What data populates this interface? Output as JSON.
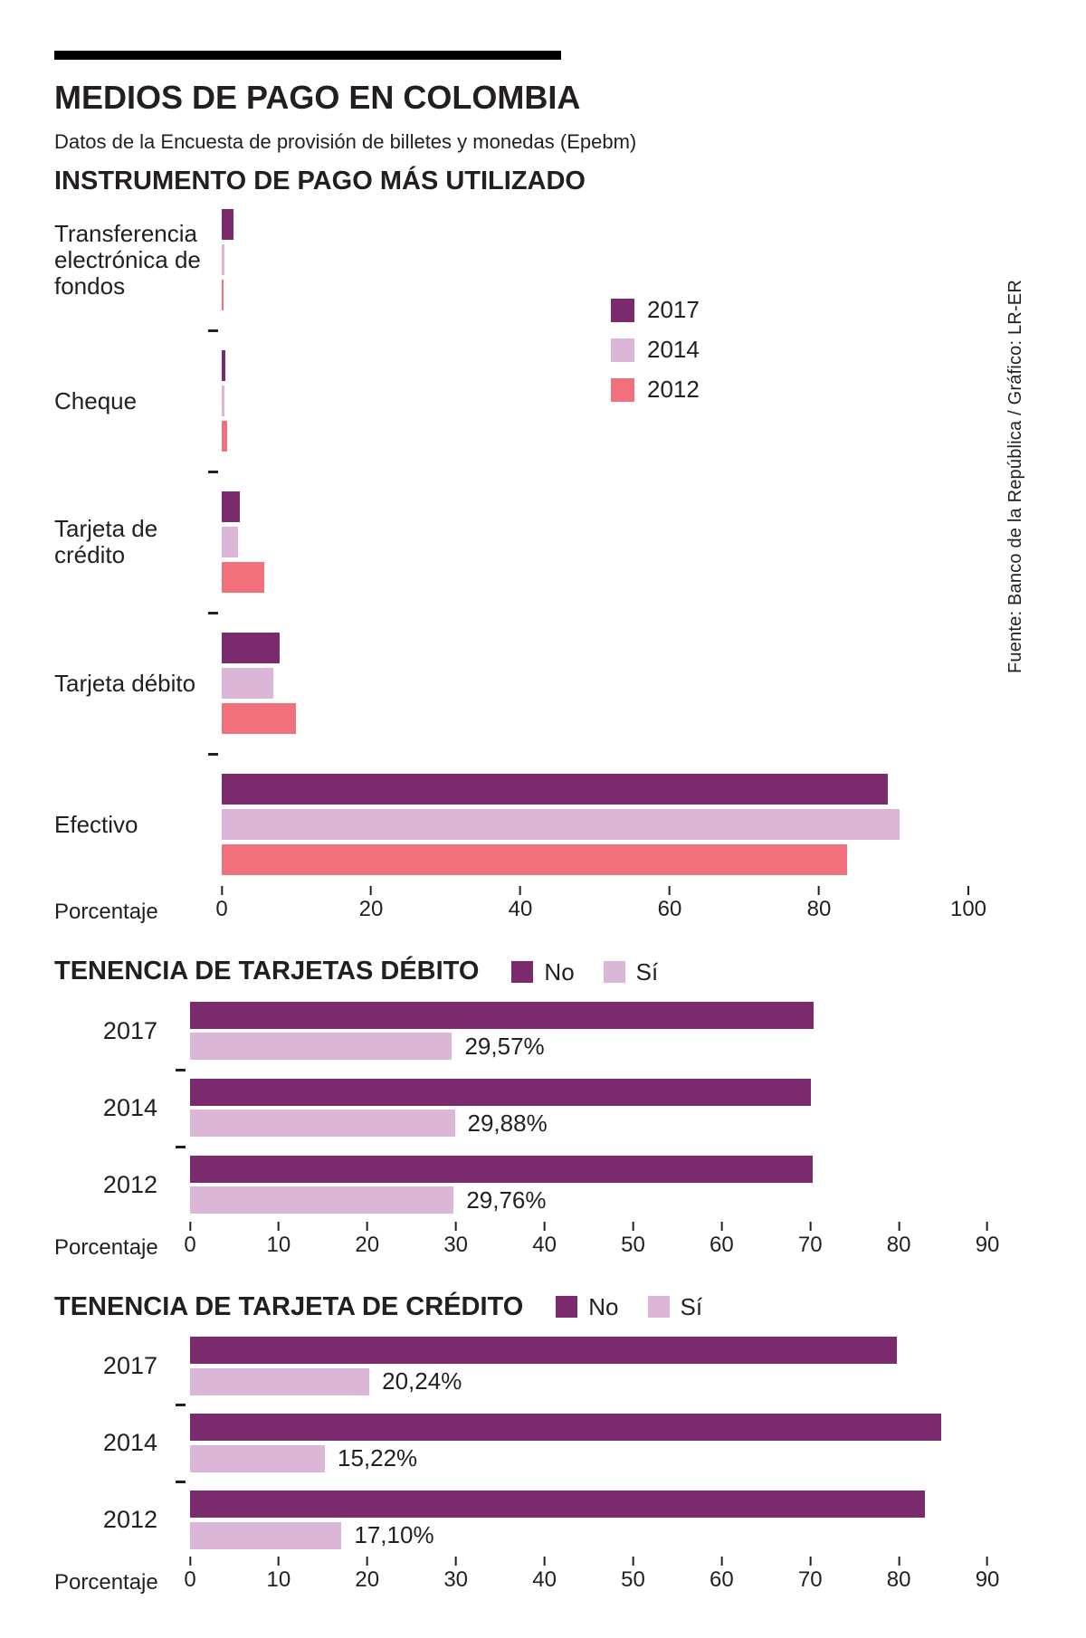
{
  "header": {
    "title": "MEDIOS DE PAGO EN COLOMBIA",
    "subtitle": "Datos de la Encuesta de provisión de billetes y monedas (Epebm)",
    "source_vertical": "Fuente: Banco de la República / Gráfico: LR-ER"
  },
  "colors": {
    "purple_2017_no": "#7a2a6d",
    "lavender_2014_si": "#dbb6d6",
    "salmon_2012": "#f1707c",
    "text": "#231f20",
    "rule": "#000000"
  },
  "chart_data": [
    {
      "id": "instrumento",
      "type": "bar",
      "orientation": "horizontal",
      "title": "INSTRUMENTO DE PAGO MÁS UTILIZADO",
      "categories": [
        "Transferencia electrónica de fondos",
        "Cheque",
        "Tarjeta de crédito",
        "Tarjeta débito",
        "Efectivo"
      ],
      "series": [
        {
          "name": "2017",
          "color": "#7a2a6d",
          "values": [
            1.6,
            0.5,
            2.4,
            7.7,
            89.2
          ]
        },
        {
          "name": "2014",
          "color": "#dbb6d6",
          "values": [
            0.4,
            0.4,
            2.2,
            6.9,
            90.8
          ]
        },
        {
          "name": "2012",
          "color": "#f1707c",
          "values": [
            0.2,
            0.7,
            5.7,
            9.9,
            83.7
          ]
        }
      ],
      "xlabel": "Porcentaje",
      "xlim": [
        0,
        100
      ],
      "xticks": [
        0,
        20,
        40,
        60,
        80,
        100
      ],
      "legend_position": "inside-top-center",
      "grid": false
    },
    {
      "id": "tenencia-debito",
      "type": "bar",
      "orientation": "horizontal",
      "title": "TENENCIA DE TARJETAS DÉBITO",
      "categories": [
        "2017",
        "2014",
        "2012"
      ],
      "series": [
        {
          "name": "No",
          "color": "#7a2a6d",
          "values": [
            70.43,
            70.12,
            70.24
          ]
        },
        {
          "name": "Sí",
          "color": "#dbb6d6",
          "values": [
            29.57,
            29.88,
            29.76
          ],
          "labels": [
            "29,57%",
            "29,88%",
            "29,76%"
          ]
        }
      ],
      "xlabel": "Porcentaje",
      "xlim": [
        0,
        95
      ],
      "xticks": [
        0,
        10,
        20,
        30,
        40,
        50,
        60,
        70,
        80,
        90
      ],
      "legend_position": "title-row",
      "grid": false
    },
    {
      "id": "tenencia-credito",
      "type": "bar",
      "orientation": "horizontal",
      "title": "TENENCIA DE TARJETA DE CRÉDITO",
      "categories": [
        "2017",
        "2014",
        "2012"
      ],
      "series": [
        {
          "name": "No",
          "color": "#7a2a6d",
          "values": [
            79.76,
            84.78,
            82.9
          ]
        },
        {
          "name": "Sí",
          "color": "#dbb6d6",
          "values": [
            20.24,
            15.22,
            17.1
          ],
          "labels": [
            "20,24%",
            "15,22%",
            "17,10%"
          ]
        }
      ],
      "xlabel": "Porcentaje",
      "xlim": [
        0,
        95
      ],
      "xticks": [
        0,
        10,
        20,
        30,
        40,
        50,
        60,
        70,
        80,
        90
      ],
      "legend_position": "title-row",
      "grid": false
    }
  ]
}
